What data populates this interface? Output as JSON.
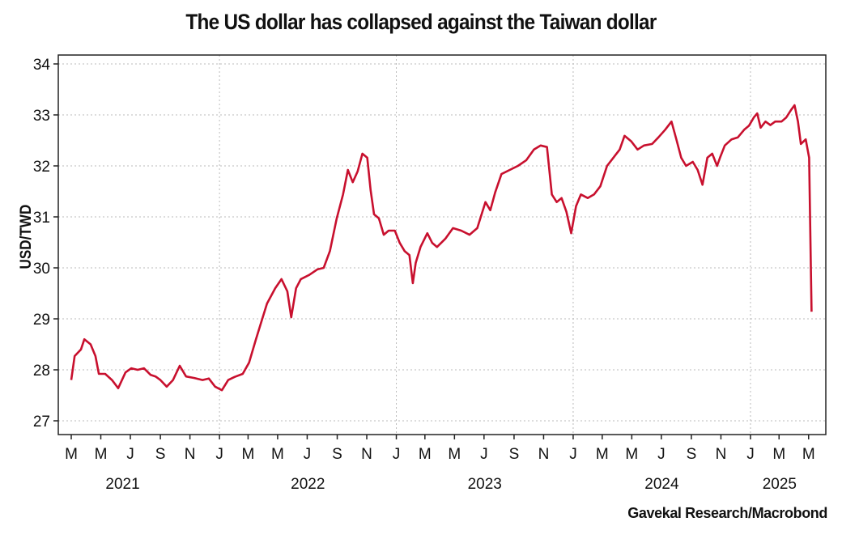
{
  "chart_data": {
    "type": "line",
    "title": "The US dollar has collapsed against the Taiwan dollar",
    "ylabel": "USD/TWD",
    "xlabel": "",
    "source": "Gavekal Research/Macrobond",
    "ylim": [
      27,
      34
    ],
    "yticks": [
      27,
      28,
      29,
      30,
      31,
      32,
      33,
      34
    ],
    "xlim": [
      "2021-02-22",
      "2025-05-20"
    ],
    "xtick_labels": [
      "M",
      "M",
      "J",
      "S",
      "N",
      "J",
      "M",
      "M",
      "J",
      "S",
      "N",
      "J",
      "M",
      "M",
      "J",
      "S",
      "N",
      "J",
      "M",
      "M",
      "J",
      "S",
      "N",
      "J",
      "M",
      "M"
    ],
    "year_labels": [
      "2021",
      "2022",
      "2023",
      "2024",
      "2025"
    ],
    "grid": true,
    "line_color": "#c8102e",
    "series": [
      {
        "x": [
          "2021-03-01",
          "2021-03-08",
          "2021-03-21",
          "2021-03-28",
          "2021-04-10",
          "2021-04-20",
          "2021-04-27",
          "2021-05-10",
          "2021-05-24",
          "2021-06-06",
          "2021-06-21",
          "2021-07-03",
          "2021-07-16",
          "2021-07-29",
          "2021-08-12",
          "2021-08-22",
          "2021-09-01",
          "2021-09-14",
          "2021-09-27",
          "2021-10-11",
          "2021-10-24",
          "2021-11-10",
          "2021-11-27",
          "2021-12-10",
          "2021-12-23",
          "2022-01-06",
          "2022-01-19",
          "2022-02-01",
          "2022-02-18",
          "2022-03-03",
          "2022-03-17",
          "2022-03-27",
          "2022-04-09",
          "2022-04-26",
          "2022-05-09",
          "2022-05-21",
          "2022-05-29",
          "2022-06-08",
          "2022-06-18",
          "2022-07-05",
          "2022-07-22",
          "2022-08-04",
          "2022-08-17",
          "2022-08-31",
          "2022-09-13",
          "2022-09-23",
          "2022-10-03",
          "2022-10-13",
          "2022-10-23",
          "2022-11-02",
          "2022-11-09",
          "2022-11-16",
          "2022-11-26",
          "2022-12-06",
          "2022-12-16",
          "2022-12-29",
          "2023-01-08",
          "2023-01-18",
          "2023-01-28",
          "2023-02-04",
          "2023-02-10",
          "2023-02-20",
          "2023-03-06",
          "2023-03-16",
          "2023-03-26",
          "2023-04-12",
          "2023-04-28",
          "2023-05-15",
          "2023-06-01",
          "2023-06-17",
          "2023-07-04",
          "2023-07-14",
          "2023-07-24",
          "2023-08-06",
          "2023-08-23",
          "2023-09-09",
          "2023-09-26",
          "2023-10-12",
          "2023-10-26",
          "2023-11-08",
          "2023-11-18",
          "2023-11-28",
          "2023-12-08",
          "2023-12-18",
          "2023-12-28",
          "2024-01-07",
          "2024-01-17",
          "2024-01-31",
          "2024-02-13",
          "2024-02-26",
          "2024-03-11",
          "2024-03-24",
          "2024-04-06",
          "2024-04-16",
          "2024-04-30",
          "2024-05-13",
          "2024-05-26",
          "2024-06-12",
          "2024-06-25",
          "2024-07-09",
          "2024-07-22",
          "2024-08-01",
          "2024-08-11",
          "2024-08-21",
          "2024-09-04",
          "2024-09-14",
          "2024-09-24",
          "2024-10-04",
          "2024-10-14",
          "2024-10-24",
          "2024-10-30",
          "2024-11-09",
          "2024-11-23",
          "2024-12-06",
          "2024-12-19",
          "2024-12-29",
          "2025-01-08",
          "2025-01-15",
          "2025-01-22",
          "2025-02-01",
          "2025-02-11",
          "2025-02-21",
          "2025-03-06",
          "2025-03-16",
          "2025-03-26",
          "2025-04-02",
          "2025-04-09",
          "2025-04-15",
          "2025-04-25",
          "2025-05-02",
          "2025-05-07"
        ],
        "y": [
          27.8,
          28.27,
          28.4,
          28.6,
          28.5,
          28.27,
          27.92,
          27.92,
          27.8,
          27.64,
          27.95,
          28.03,
          28.0,
          28.03,
          27.9,
          27.87,
          27.8,
          27.67,
          27.8,
          28.08,
          27.87,
          27.84,
          27.8,
          27.83,
          27.67,
          27.6,
          27.8,
          27.86,
          27.92,
          28.14,
          28.59,
          28.9,
          29.3,
          29.6,
          29.78,
          29.54,
          29.03,
          29.6,
          29.78,
          29.86,
          29.97,
          30.0,
          30.33,
          30.97,
          31.44,
          31.92,
          31.68,
          31.89,
          32.24,
          32.16,
          31.52,
          31.05,
          30.97,
          30.65,
          30.73,
          30.73,
          30.49,
          30.33,
          30.25,
          29.7,
          30.1,
          30.41,
          30.68,
          30.49,
          30.41,
          30.57,
          30.78,
          30.73,
          30.65,
          30.78,
          31.29,
          31.13,
          31.48,
          31.84,
          31.92,
          32.0,
          32.11,
          32.32,
          32.4,
          32.37,
          31.44,
          31.29,
          31.37,
          31.1,
          30.68,
          31.21,
          31.44,
          31.37,
          31.44,
          31.6,
          32.0,
          32.16,
          32.32,
          32.59,
          32.48,
          32.32,
          32.4,
          32.43,
          32.56,
          32.71,
          32.87,
          32.52,
          32.16,
          32.0,
          32.08,
          31.92,
          31.63,
          32.16,
          32.24,
          32.0,
          32.16,
          32.4,
          32.52,
          32.56,
          32.71,
          32.79,
          32.95,
          33.03,
          32.75,
          32.87,
          32.8,
          32.87,
          32.87,
          32.95,
          33.1,
          33.19,
          32.87,
          32.43,
          32.52,
          32.16,
          29.14
        ]
      }
    ]
  }
}
